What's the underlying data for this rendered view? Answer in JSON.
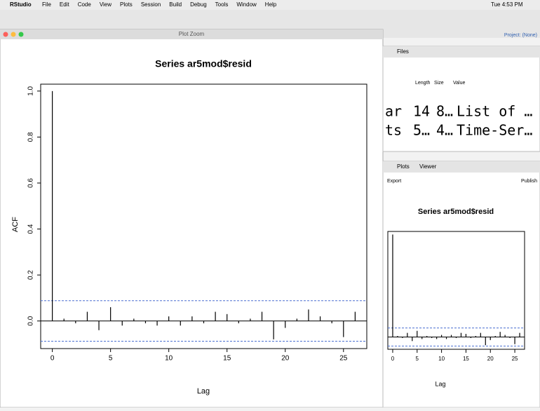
{
  "menu_bar": {
    "app": "RStudio",
    "items": [
      "File",
      "Edit",
      "Code",
      "View",
      "Plots",
      "Session",
      "Build",
      "Debug",
      "Tools",
      "Window",
      "Help"
    ],
    "clock": "Tue 4:53 PM"
  },
  "plot_window": {
    "title": "Plot Zoom",
    "chart": {
      "type": "bar",
      "title": "Series ar5mod$resid",
      "x_label": "Lag",
      "y_label": "ACF",
      "x": [
        0,
        1,
        2,
        3,
        4,
        5,
        6,
        7,
        8,
        9,
        10,
        11,
        12,
        13,
        14,
        15,
        16,
        17,
        18,
        19,
        20,
        21,
        22,
        23,
        24,
        25,
        26
      ],
      "values": [
        1.0,
        0.01,
        -0.01,
        0.04,
        -0.04,
        0.06,
        -0.02,
        0.01,
        -0.01,
        -0.02,
        0.02,
        -0.02,
        0.02,
        -0.01,
        0.04,
        0.03,
        -0.01,
        0.01,
        0.04,
        -0.08,
        -0.03,
        0.01,
        0.05,
        0.02,
        -0.01,
        -0.07,
        0.04
      ],
      "confidence_bound": 0.088,
      "color": "#000000",
      "bound_color": "#4a6fd0",
      "xlim": [
        -1,
        27
      ],
      "ylim": [
        -0.12,
        1.03
      ],
      "xticks": [
        0,
        5,
        10,
        15,
        20,
        25
      ],
      "yticks": [
        {
          "value": 0,
          "label": "0.0"
        },
        {
          "value": 0.2,
          "label": "0.2"
        },
        {
          "value": 0.4,
          "label": "0.4"
        },
        {
          "value": 0.6,
          "label": "0.6"
        },
        {
          "value": 0.8,
          "label": "0.8"
        },
        {
          "value": 1,
          "label": "1.0"
        }
      ]
    }
  },
  "environment_pane": {
    "tab": "Files",
    "columns": [
      "Length",
      "Size",
      "Value"
    ],
    "rows": [
      [
        "ar",
        "14",
        "8…",
        "List of …"
      ],
      [
        "ts",
        "5…",
        "4…",
        "Time-Ser…"
      ]
    ]
  },
  "plots_pane": {
    "tabs": [
      "Plots",
      "Viewer"
    ],
    "toolbar": [
      "Export",
      "Publish"
    ],
    "top_button": "Project: (None)"
  }
}
